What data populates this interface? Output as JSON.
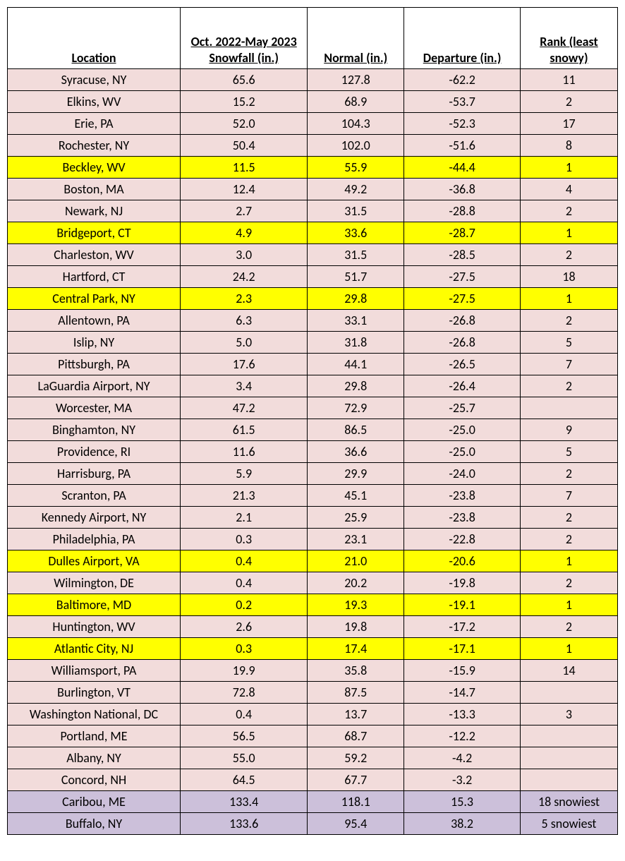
{
  "table": {
    "columns": [
      {
        "key": "location",
        "label": "Location",
        "width_class": "col-location"
      },
      {
        "key": "snowfall",
        "label": "Oct. 2022-May 2023 Snowfall (in.)",
        "width_class": "col-snowfall"
      },
      {
        "key": "normal",
        "label": "Normal (in.)",
        "width_class": "col-normal"
      },
      {
        "key": "departure",
        "label": "Departure (in.)",
        "width_class": "col-departure"
      },
      {
        "key": "rank",
        "label": "Rank (least snowy)",
        "width_class": "col-rank"
      }
    ],
    "colors": {
      "normal_row_bg": "#f2dcdb",
      "highlight_yellow_bg": "#ffff00",
      "highlight_purple_bg": "#ccc0da",
      "border": "#000000",
      "header_bg": "#ffffff",
      "text": "#000000"
    },
    "font": {
      "family": "Calibri",
      "header_size_pt": 14,
      "body_size_pt": 14,
      "header_weight": "bold"
    },
    "rows": [
      {
        "location": "Syracuse, NY",
        "snowfall": "65.6",
        "normal": "127.8",
        "departure": "-62.2",
        "rank": "11",
        "style": "normal"
      },
      {
        "location": "Elkins, WV",
        "snowfall": "15.2",
        "normal": "68.9",
        "departure": "-53.7",
        "rank": "2",
        "style": "normal"
      },
      {
        "location": "Erie, PA",
        "snowfall": "52.0",
        "normal": "104.3",
        "departure": "-52.3",
        "rank": "17",
        "style": "normal"
      },
      {
        "location": "Rochester, NY",
        "snowfall": "50.4",
        "normal": "102.0",
        "departure": "-51.6",
        "rank": "8",
        "style": "normal"
      },
      {
        "location": "Beckley, WV",
        "snowfall": "11.5",
        "normal": "55.9",
        "departure": "-44.4",
        "rank": "1",
        "style": "yellow"
      },
      {
        "location": "Boston, MA",
        "snowfall": "12.4",
        "normal": "49.2",
        "departure": "-36.8",
        "rank": "4",
        "style": "normal"
      },
      {
        "location": "Newark, NJ",
        "snowfall": "2.7",
        "normal": "31.5",
        "departure": "-28.8",
        "rank": "2",
        "style": "normal"
      },
      {
        "location": "Bridgeport, CT",
        "snowfall": "4.9",
        "normal": "33.6",
        "departure": "-28.7",
        "rank": "1",
        "style": "yellow"
      },
      {
        "location": "Charleston, WV",
        "snowfall": "3.0",
        "normal": "31.5",
        "departure": "-28.5",
        "rank": "2",
        "style": "normal"
      },
      {
        "location": "Hartford, CT",
        "snowfall": "24.2",
        "normal": "51.7",
        "departure": "-27.5",
        "rank": "18",
        "style": "normal"
      },
      {
        "location": "Central Park, NY",
        "snowfall": "2.3",
        "normal": "29.8",
        "departure": "-27.5",
        "rank": "1",
        "style": "yellow"
      },
      {
        "location": "Allentown, PA",
        "snowfall": "6.3",
        "normal": "33.1",
        "departure": "-26.8",
        "rank": "2",
        "style": "normal"
      },
      {
        "location": "Islip, NY",
        "snowfall": "5.0",
        "normal": "31.8",
        "departure": "-26.8",
        "rank": "5",
        "style": "normal"
      },
      {
        "location": "Pittsburgh, PA",
        "snowfall": "17.6",
        "normal": "44.1",
        "departure": "-26.5",
        "rank": "7",
        "style": "normal"
      },
      {
        "location": "LaGuardia Airport, NY",
        "snowfall": "3.4",
        "normal": "29.8",
        "departure": "-26.4",
        "rank": "2",
        "style": "normal"
      },
      {
        "location": "Worcester, MA",
        "snowfall": "47.2",
        "normal": "72.9",
        "departure": "-25.7",
        "rank": "",
        "style": "normal"
      },
      {
        "location": "Binghamton, NY",
        "snowfall": "61.5",
        "normal": "86.5",
        "departure": "-25.0",
        "rank": "9",
        "style": "normal"
      },
      {
        "location": "Providence, RI",
        "snowfall": "11.6",
        "normal": "36.6",
        "departure": "-25.0",
        "rank": "5",
        "style": "normal"
      },
      {
        "location": "Harrisburg, PA",
        "snowfall": "5.9",
        "normal": "29.9",
        "departure": "-24.0",
        "rank": "2",
        "style": "normal"
      },
      {
        "location": "Scranton, PA",
        "snowfall": "21.3",
        "normal": "45.1",
        "departure": "-23.8",
        "rank": "7",
        "style": "normal"
      },
      {
        "location": "Kennedy Airport, NY",
        "snowfall": "2.1",
        "normal": "25.9",
        "departure": "-23.8",
        "rank": "2",
        "style": "normal"
      },
      {
        "location": "Philadelphia, PA",
        "snowfall": "0.3",
        "normal": "23.1",
        "departure": "-22.8",
        "rank": "2",
        "style": "normal"
      },
      {
        "location": "Dulles Airport, VA",
        "snowfall": "0.4",
        "normal": "21.0",
        "departure": "-20.6",
        "rank": "1",
        "style": "yellow"
      },
      {
        "location": "Wilmington, DE",
        "snowfall": "0.4",
        "normal": "20.2",
        "departure": "-19.8",
        "rank": "2",
        "style": "normal"
      },
      {
        "location": "Baltimore, MD",
        "snowfall": "0.2",
        "normal": "19.3",
        "departure": "-19.1",
        "rank": "1",
        "style": "yellow"
      },
      {
        "location": "Huntington, WV",
        "snowfall": "2.6",
        "normal": "19.8",
        "departure": "-17.2",
        "rank": "2",
        "style": "normal"
      },
      {
        "location": "Atlantic City, NJ",
        "snowfall": "0.3",
        "normal": "17.4",
        "departure": "-17.1",
        "rank": "1",
        "style": "yellow"
      },
      {
        "location": "Williamsport, PA",
        "snowfall": "19.9",
        "normal": "35.8",
        "departure": "-15.9",
        "rank": "14",
        "style": "normal"
      },
      {
        "location": "Burlington, VT",
        "snowfall": "72.8",
        "normal": "87.5",
        "departure": "-14.7",
        "rank": "",
        "style": "normal"
      },
      {
        "location": "Washington National, DC",
        "snowfall": "0.4",
        "normal": "13.7",
        "departure": "-13.3",
        "rank": "3",
        "style": "normal"
      },
      {
        "location": "Portland, ME",
        "snowfall": "56.5",
        "normal": "68.7",
        "departure": "-12.2",
        "rank": "",
        "style": "normal"
      },
      {
        "location": "Albany, NY",
        "snowfall": "55.0",
        "normal": "59.2",
        "departure": "-4.2",
        "rank": "",
        "style": "normal"
      },
      {
        "location": "Concord, NH",
        "snowfall": "64.5",
        "normal": "67.7",
        "departure": "-3.2",
        "rank": "",
        "style": "normal"
      },
      {
        "location": "Caribou, ME",
        "snowfall": "133.4",
        "normal": "118.1",
        "departure": "15.3",
        "rank": "18 snowiest",
        "style": "purple"
      },
      {
        "location": "Buffalo, NY",
        "snowfall": "133.6",
        "normal": "95.4",
        "departure": "38.2",
        "rank": "5 snowiest",
        "style": "purple"
      }
    ]
  }
}
